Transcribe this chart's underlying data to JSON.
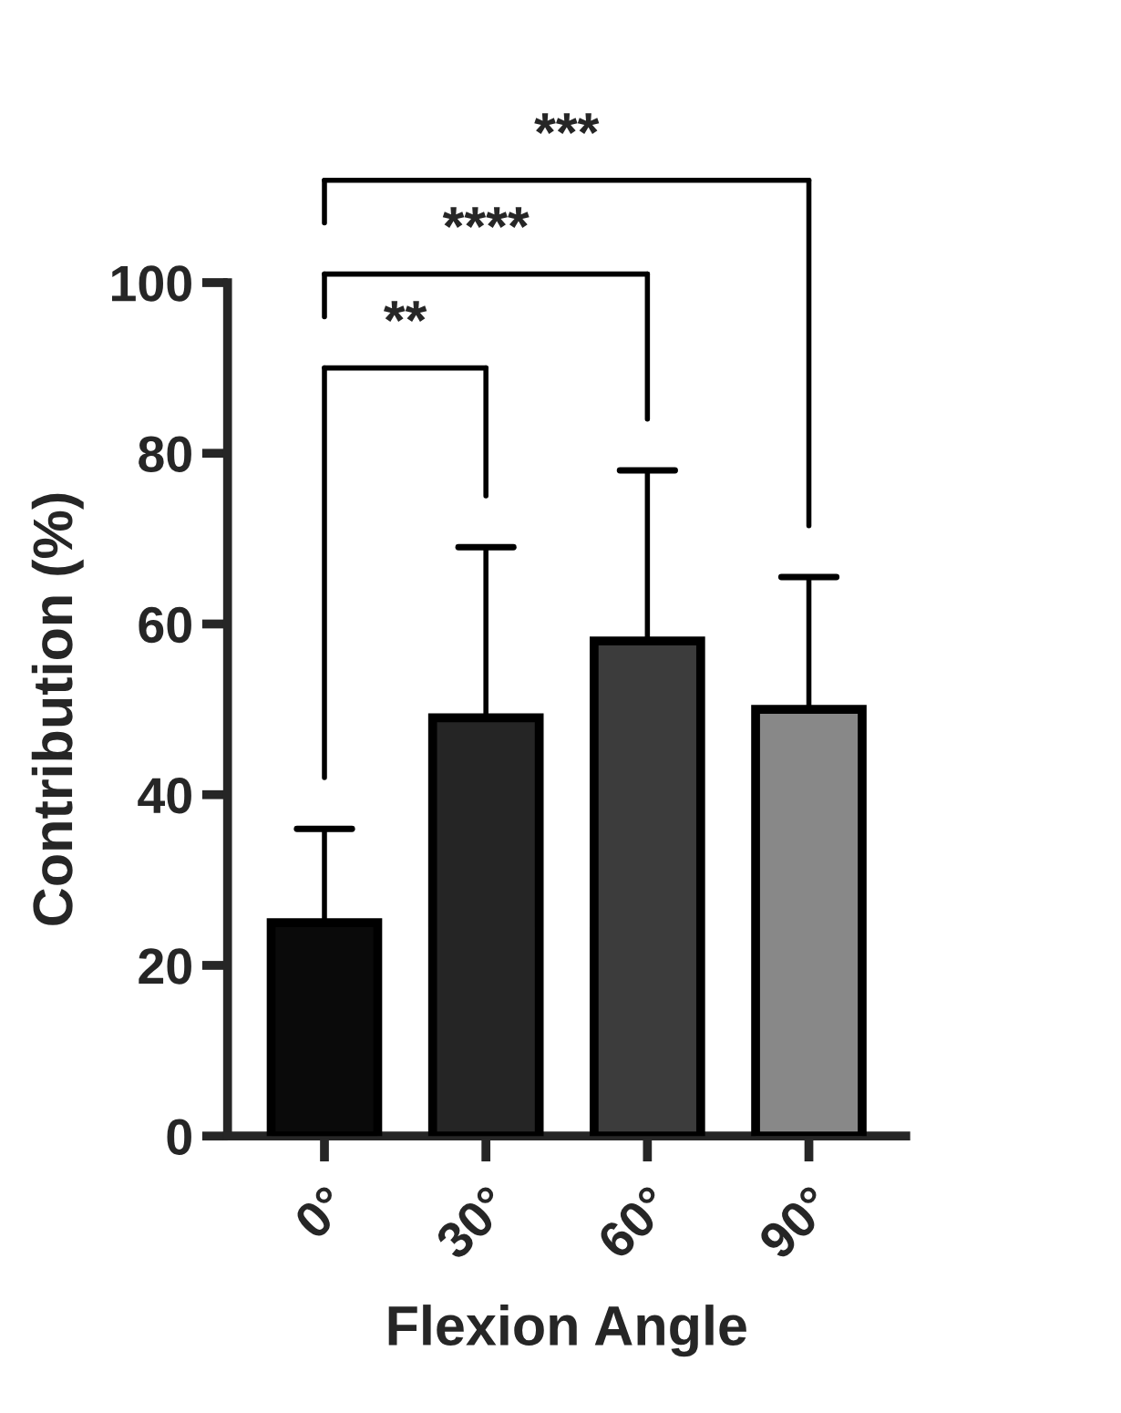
{
  "chart_data": {
    "type": "bar",
    "xlabel": "Flexion Angle",
    "ylabel": "Contribution (%)",
    "categories": [
      "0°",
      "30°",
      "60°",
      "90°"
    ],
    "values": [
      25,
      49,
      58,
      50
    ],
    "colors": [
      "#0a0a0a",
      "#252525",
      "#3c3c3c",
      "#888888"
    ],
    "errors": [
      [
        25,
        36
      ],
      [
        49,
        69
      ],
      [
        58,
        78
      ],
      [
        50,
        65.5
      ]
    ],
    "ylim": [
      0,
      100
    ],
    "yticks": [
      0,
      20,
      40,
      60,
      80,
      100
    ],
    "grid": false,
    "legend": false,
    "annotations": [
      "**",
      "****",
      "***"
    ]
  }
}
